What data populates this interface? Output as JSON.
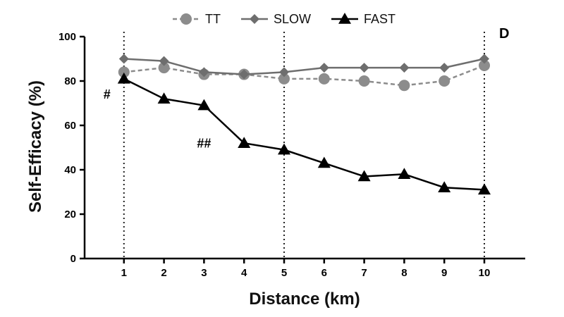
{
  "chart_data": {
    "type": "line",
    "panel_label": "D",
    "xlabel": "Distance (km)",
    "ylabel": "Self-Efficacy (%)",
    "x": [
      1,
      2,
      3,
      4,
      5,
      6,
      7,
      8,
      9,
      10
    ],
    "xlim": [
      0,
      11
    ],
    "ylim": [
      0,
      100
    ],
    "xticks": [
      "1",
      "2",
      "3",
      "4",
      "5",
      "6",
      "7",
      "8",
      "9",
      "10"
    ],
    "yticks": [
      "0",
      "20",
      "40",
      "60",
      "80",
      "100"
    ],
    "vertical_reference_lines_at": [
      1,
      5,
      10
    ],
    "legend_position": "top-center",
    "series": [
      {
        "name": "TT",
        "marker": "circle",
        "line_style": "dashed",
        "color": "#8c8c8c",
        "values": [
          84,
          86,
          83,
          83,
          81,
          81,
          80,
          78,
          80,
          87
        ]
      },
      {
        "name": "SLOW",
        "marker": "diamond",
        "line_style": "solid",
        "color": "#6e6e6e",
        "values": [
          90,
          89,
          84,
          83,
          84,
          86,
          86,
          86,
          86,
          90
        ]
      },
      {
        "name": "FAST",
        "marker": "triangle",
        "line_style": "solid",
        "color": "#000000",
        "values": [
          81,
          72,
          69,
          52,
          49,
          43,
          37,
          38,
          32,
          31
        ]
      }
    ],
    "annotations": [
      {
        "text": "#",
        "x": 1,
        "y": 81
      },
      {
        "text": "##",
        "x": 3,
        "y": 69
      }
    ]
  }
}
